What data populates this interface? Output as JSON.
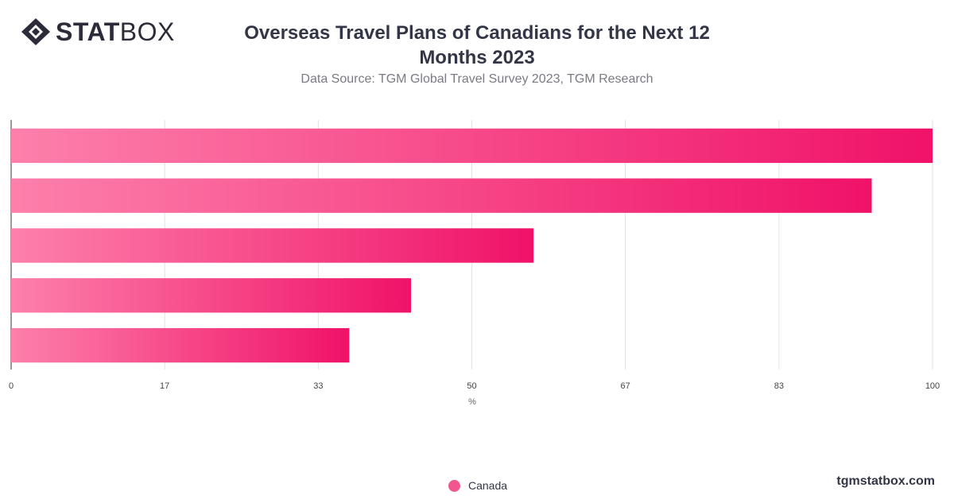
{
  "brand": {
    "logo_bold": "STAT",
    "logo_light": "BOX",
    "icon": "diamond-logo-icon"
  },
  "title": "Overseas Travel Plans of Canadians for the Next 12 Months 2023",
  "subtitle": "Data Source: TGM Global Travel Survey 2023, TGM Research",
  "website": "tgmstatbox.com",
  "colors": {
    "bar_light": "#fd80ab",
    "bar_dark": "#f01268",
    "grid": "#e2e2e2",
    "axis_text": "#444444"
  },
  "chart_data": {
    "type": "bar",
    "orientation": "horizontal",
    "categories": [
      "",
      "",
      "",
      "",
      ""
    ],
    "series": [
      {
        "name": "Canada",
        "values": [
          100,
          93.4,
          56.7,
          43.4,
          36.7
        ]
      }
    ],
    "xlabel": "%",
    "ylabel": "",
    "xlim": [
      0,
      100
    ],
    "xticks": [
      "0",
      "17",
      "33",
      "50",
      "67",
      "83",
      "100"
    ],
    "grid": true,
    "legend": "bottom-center"
  }
}
